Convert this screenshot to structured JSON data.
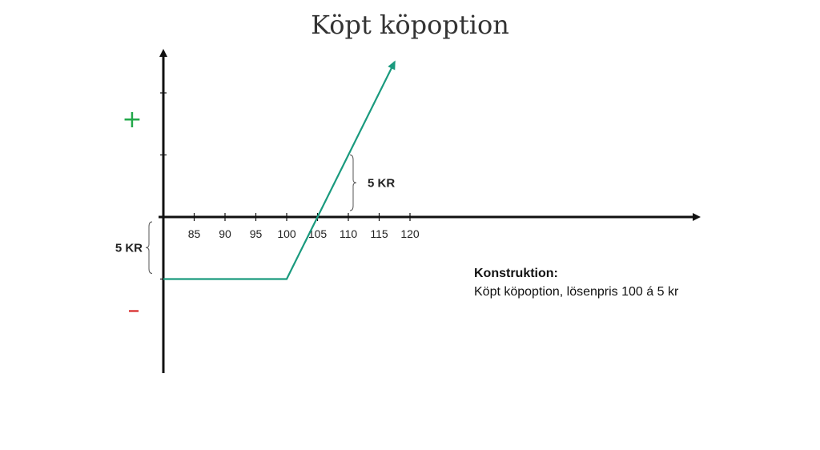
{
  "title": "Köpt köpoption",
  "chart_data": {
    "type": "line",
    "title": "Köpt köpoption",
    "x_ticks": [
      85,
      90,
      95,
      100,
      105,
      110,
      115,
      120
    ],
    "series": [
      {
        "x": [
          80,
          100,
          117.5
        ],
        "y": [
          -5,
          -5,
          12.5
        ],
        "color": "#1a9a7e"
      }
    ],
    "xlim": [
      80,
      123
    ],
    "ylim": [
      -12.5,
      13.5
    ],
    "y_ticks": [
      -5,
      5,
      10
    ],
    "grid": false,
    "positive_sign": "+",
    "negative_sign": "–",
    "positive_color": "#22a84a",
    "negative_color": "#d62020",
    "annotations": [
      {
        "label": "5 KR",
        "from": [
          110,
          0
        ],
        "to": [
          110,
          5
        ],
        "side": "right"
      },
      {
        "label": "5 KR",
        "from": [
          80,
          0
        ],
        "to": [
          80,
          -5
        ],
        "side": "left"
      }
    ],
    "note": {
      "heading": "Konstruktion:",
      "body": "Köpt köpoption, lösenpris 100 á 5 kr"
    }
  }
}
